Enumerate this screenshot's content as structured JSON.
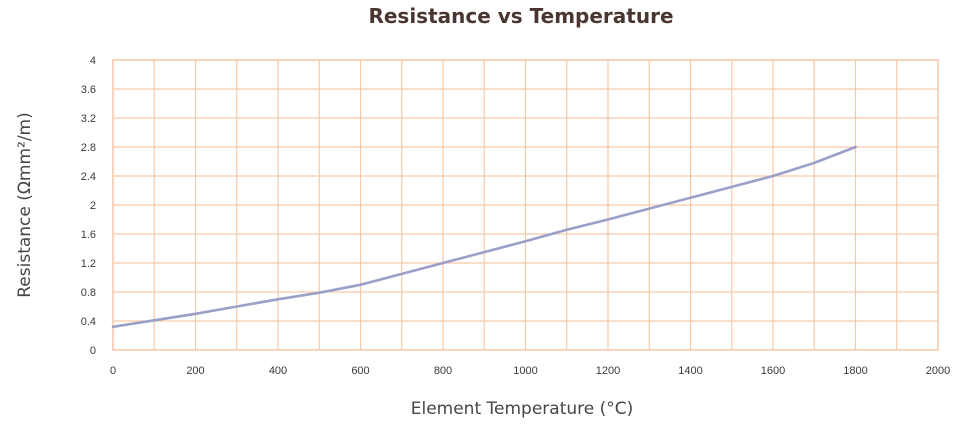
{
  "chart_data": {
    "type": "line",
    "title": "Resistance vs Temperature",
    "xlabel": "Element Temperature (°C)",
    "ylabel": "Resistance (Ωmm²/m)",
    "xlim": [
      0,
      2000
    ],
    "ylim": [
      0,
      4
    ],
    "x_ticks": [
      0,
      200,
      400,
      600,
      800,
      1000,
      1200,
      1400,
      1600,
      1800,
      2000
    ],
    "y_ticks": [
      0,
      0.4,
      0.8,
      1.2,
      1.6,
      2,
      2.4,
      2.8,
      3.2,
      3.6,
      4
    ],
    "x_gridlines": [
      100,
      200,
      300,
      400,
      500,
      600,
      700,
      800,
      900,
      1000,
      1100,
      1200,
      1300,
      1400,
      1500,
      1600,
      1700,
      1800,
      1900
    ],
    "grid": true,
    "legend": "none",
    "series": [
      {
        "name": "Resistance",
        "color": "#9aa0c8",
        "x": [
          0,
          100,
          200,
          300,
          400,
          500,
          600,
          700,
          800,
          900,
          1000,
          1100,
          1200,
          1300,
          1400,
          1500,
          1600,
          1700,
          1800
        ],
        "values": [
          0.32,
          0.41,
          0.5,
          0.6,
          0.7,
          0.79,
          0.9,
          1.05,
          1.2,
          1.35,
          1.5,
          1.66,
          1.8,
          1.95,
          2.1,
          2.25,
          2.4,
          2.58,
          2.8
        ]
      }
    ],
    "colors": {
      "grid": "#f7c9a9",
      "frame": "#f3b893",
      "title": "#4a3530",
      "axis_text": "#4a4545"
    }
  }
}
